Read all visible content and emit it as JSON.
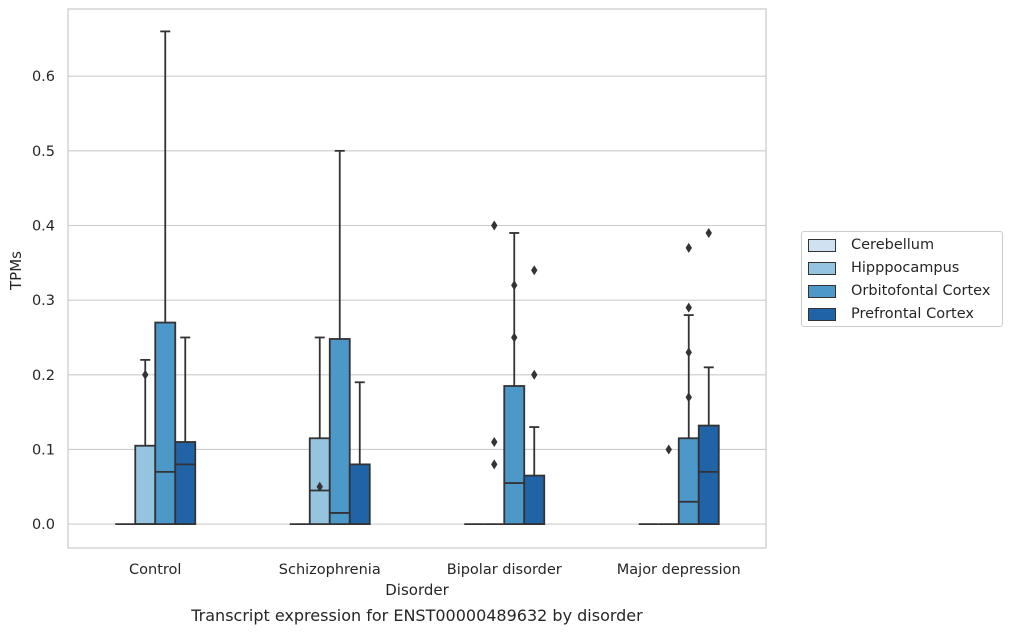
{
  "caption": "Transcript expression for ENST00000489632 by disorder",
  "chart_data": {
    "type": "box",
    "xlabel": "Disorder",
    "ylabel": "TPMs",
    "ylim": [
      -0.032,
      0.69
    ],
    "yticks": [
      "0.0",
      "0.1",
      "0.2",
      "0.3",
      "0.4",
      "0.5",
      "0.6"
    ],
    "grid": "horizontal",
    "legend_position": "right",
    "categories": [
      "Control",
      "Schizophrenia",
      "Bipolar disorder",
      "Major depression"
    ],
    "series": [
      {
        "name": "Cerebellum",
        "color": "#d0e1f2",
        "boxes": [
          {
            "min": 0,
            "q1": 0,
            "median": 0,
            "q3": 0,
            "max": 0,
            "outliers": []
          },
          {
            "min": 0,
            "q1": 0,
            "median": 0,
            "q3": 0,
            "max": 0,
            "outliers": []
          },
          {
            "min": 0,
            "q1": 0,
            "median": 0,
            "q3": 0,
            "max": 0,
            "outliers": []
          },
          {
            "min": 0,
            "q1": 0,
            "median": 0,
            "q3": 0,
            "max": 0,
            "outliers": []
          }
        ]
      },
      {
        "name": "Hipppocampus",
        "color": "#94c4df",
        "boxes": [
          {
            "min": 0,
            "q1": 0,
            "median": 0,
            "q3": 0.105,
            "max": 0.22,
            "outliers": [
              0.2
            ]
          },
          {
            "min": 0,
            "q1": 0,
            "median": 0.045,
            "q3": 0.115,
            "max": 0.25,
            "outliers": [
              0.05
            ]
          },
          {
            "min": 0,
            "q1": 0,
            "median": 0,
            "q3": 0,
            "max": 0,
            "outliers": [
              0.4,
              0.11,
              0.08
            ]
          },
          {
            "min": 0,
            "q1": 0,
            "median": 0,
            "q3": 0,
            "max": 0,
            "outliers": [
              0.1
            ]
          }
        ]
      },
      {
        "name": "Orbitofontal Cortex",
        "color": "#4b98c9",
        "boxes": [
          {
            "min": 0,
            "q1": 0,
            "median": 0.07,
            "q3": 0.27,
            "max": 0.66,
            "outliers": []
          },
          {
            "min": 0,
            "q1": 0,
            "median": 0.015,
            "q3": 0.248,
            "max": 0.5,
            "outliers": []
          },
          {
            "min": 0,
            "q1": 0,
            "median": 0.055,
            "q3": 0.185,
            "max": 0.39,
            "outliers": [
              0.32,
              0.25
            ]
          },
          {
            "min": 0,
            "q1": 0,
            "median": 0.03,
            "q3": 0.115,
            "max": 0.28,
            "outliers": [
              0.29,
              0.23,
              0.17,
              0.37
            ]
          }
        ]
      },
      {
        "name": "Prefrontal Cortex",
        "color": "#2163a7",
        "boxes": [
          {
            "min": 0,
            "q1": 0,
            "median": 0.08,
            "q3": 0.11,
            "max": 0.25,
            "outliers": []
          },
          {
            "min": 0,
            "q1": 0,
            "median": 0,
            "q3": 0.08,
            "max": 0.19,
            "outliers": []
          },
          {
            "min": 0,
            "q1": 0,
            "median": 0,
            "q3": 0.065,
            "max": 0.13,
            "outliers": [
              0.34,
              0.2
            ]
          },
          {
            "min": 0,
            "q1": 0,
            "median": 0.07,
            "q3": 0.132,
            "max": 0.21,
            "outliers": [
              0.39
            ]
          }
        ]
      }
    ]
  }
}
